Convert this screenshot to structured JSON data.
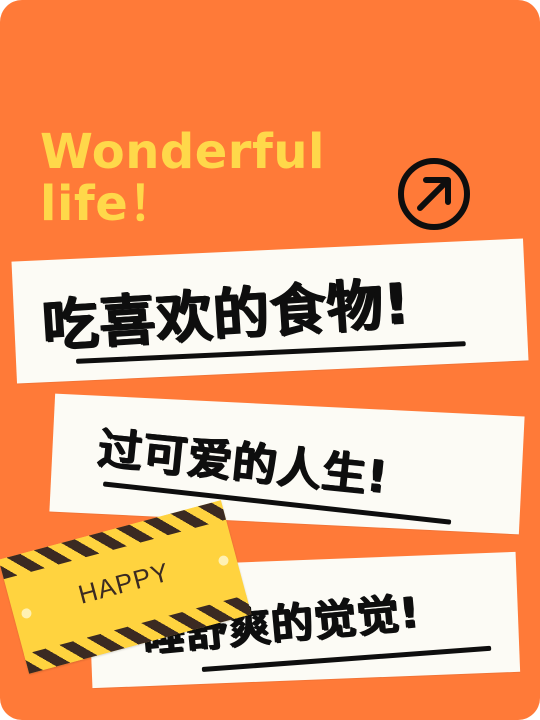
{
  "headline": {
    "line1": "Wonderful",
    "line2": "life！"
  },
  "icon": {
    "name": "arrow-up-right-icon"
  },
  "cards": [
    {
      "text": "吃喜欢的食物!"
    },
    {
      "text": "过可爱的人生!"
    },
    {
      "text": "睡舒爽的觉觉!"
    }
  ],
  "tape": {
    "label": "HAPPY"
  },
  "colors": {
    "background": "#ff7a38",
    "headline": "#ffd84a",
    "card": "#fcfbf5",
    "ink": "#0e0e0e",
    "tape": "#ffd33f",
    "tape_stripe": "#3b2a22"
  }
}
